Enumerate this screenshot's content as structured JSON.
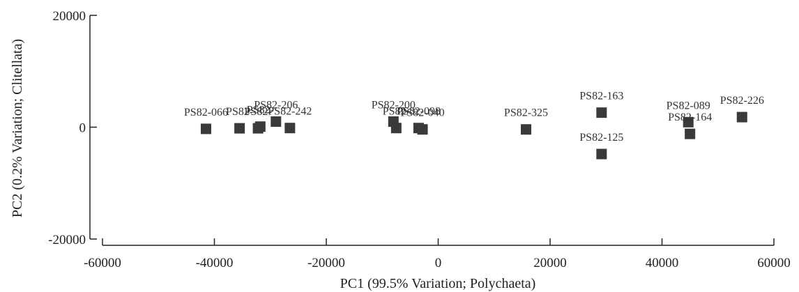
{
  "chart_data": {
    "type": "scatter",
    "xlabel": "PC1 (99.5% Variation; Polychaeta)",
    "ylabel": "PC2 (0.2% Variation; Clitellata)",
    "xlim": [
      -60000,
      60000
    ],
    "ylim": [
      -20000,
      20000
    ],
    "x_ticks": [
      -60000,
      -40000,
      -20000,
      0,
      20000,
      40000,
      60000
    ],
    "y_ticks": [
      -20000,
      0,
      20000
    ],
    "x_tick_labels": [
      "-60000",
      "-40000",
      "-20000",
      "0",
      "20000",
      "40000",
      "60000"
    ],
    "y_tick_labels": [
      "-20000",
      "0",
      "20000"
    ],
    "grid": false,
    "marker": "square",
    "colors": {
      "marker": "#3a3a3a",
      "axis": "#222222",
      "text": "#222222"
    },
    "points": [
      {
        "label": "PS82-066",
        "x": -41500,
        "y": -300
      },
      {
        "label": "PS82-",
        "x": -35500,
        "y": -200
      },
      {
        "label": "PS82-",
        "x": -32200,
        "y": -200
      },
      {
        "label": "PS82-",
        "x": -31800,
        "y": 100
      },
      {
        "label": "PS82-206",
        "x": -29000,
        "y": 1000
      },
      {
        "label": "PS82-242",
        "x": -26500,
        "y": -150
      },
      {
        "label": "PS82-200",
        "x": -8000,
        "y": 1000
      },
      {
        "label": "PS82-",
        "x": -7500,
        "y": -150
      },
      {
        "label": "PS82-098",
        "x": -3500,
        "y": -150
      },
      {
        "label": "PS82-040",
        "x": -2800,
        "y": -400
      },
      {
        "label": "PS82-325",
        "x": 15700,
        "y": -400
      },
      {
        "label": "PS82-163",
        "x": 29200,
        "y": 2600
      },
      {
        "label": "PS82-125",
        "x": 29200,
        "y": -4800
      },
      {
        "label": "PS82-089",
        "x": 44700,
        "y": 900
      },
      {
        "label": "PS82-164",
        "x": 45000,
        "y": -1200
      },
      {
        "label": "PS82-226",
        "x": 54300,
        "y": 1800
      }
    ]
  }
}
